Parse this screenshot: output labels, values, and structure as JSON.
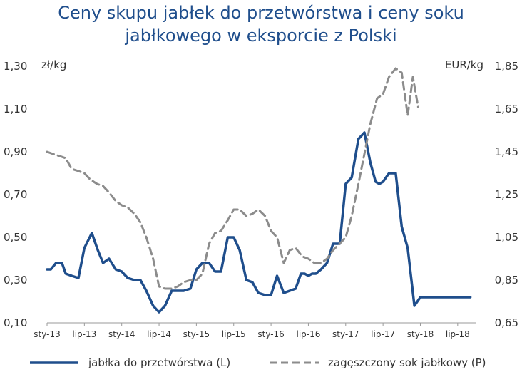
{
  "title_line1": "Ceny skupu jabłek do przetwórstwa i ceny soku",
  "title_line2": "jabłkowego w eksporcie z Polski",
  "chart_data": {
    "type": "line",
    "title": "Ceny skupu jabłek do przetwórstwa i ceny soku jabłkowego w eksporcie z Polski",
    "y_left_unit": "zł/kg",
    "y_right_unit": "EUR/kg",
    "y_left_ticks": [
      "1,30",
      "1,10",
      "0,90",
      "0,70",
      "0,50",
      "0,30",
      "0,10"
    ],
    "y_right_ticks": [
      "1,85",
      "1,65",
      "1,45",
      "1,25",
      "1,05",
      "0,85",
      "0,65"
    ],
    "y_left_lim": [
      0.1,
      1.3
    ],
    "y_right_lim": [
      0.65,
      1.85
    ],
    "x_tick_labels": [
      "sty-13",
      "lip-13",
      "sty-14",
      "lip-14",
      "sty-15",
      "lip-15",
      "sty-16",
      "lip-16",
      "sty-17",
      "lip-17",
      "sty-18",
      "lip-18"
    ],
    "x_range": [
      2013.0,
      2018.75
    ],
    "grid": false,
    "legend_position": "bottom",
    "series": [
      {
        "name": "jabłka do przetwórstwa (L)",
        "axis": "left",
        "color": "#1f4e8c",
        "style": "solid",
        "x": [
          2013.0,
          2013.05,
          2013.12,
          2013.2,
          2013.25,
          2013.33,
          2013.42,
          2013.5,
          2013.6,
          2013.68,
          2013.75,
          2013.83,
          2013.92,
          2014.0,
          2014.08,
          2014.17,
          2014.25,
          2014.33,
          2014.42,
          2014.5,
          2014.58,
          2014.67,
          2014.75,
          2014.83,
          2014.92,
          2015.0,
          2015.08,
          2015.17,
          2015.25,
          2015.33,
          2015.42,
          2015.5,
          2015.58,
          2015.67,
          2015.75,
          2015.83,
          2015.92,
          2016.0,
          2016.08,
          2016.17,
          2016.25,
          2016.33,
          2016.4,
          2016.45,
          2016.5,
          2016.55,
          2016.6,
          2016.67,
          2016.75,
          2016.83,
          2016.92,
          2017.0,
          2017.08,
          2017.17,
          2017.25,
          2017.33,
          2017.4,
          2017.45,
          2017.5,
          2017.58,
          2017.67,
          2017.75,
          2017.83,
          2017.92,
          2018.0,
          2018.08,
          2018.15,
          2018.25,
          2018.33,
          2018.42,
          2018.5,
          2018.58,
          2018.67
        ],
        "values": [
          0.35,
          0.35,
          0.38,
          0.38,
          0.33,
          0.32,
          0.31,
          0.45,
          0.52,
          0.44,
          0.38,
          0.4,
          0.35,
          0.34,
          0.31,
          0.3,
          0.3,
          0.25,
          0.18,
          0.15,
          0.18,
          0.25,
          0.25,
          0.25,
          0.26,
          0.35,
          0.38,
          0.38,
          0.34,
          0.34,
          0.5,
          0.5,
          0.44,
          0.3,
          0.29,
          0.24,
          0.23,
          0.23,
          0.32,
          0.24,
          0.25,
          0.26,
          0.33,
          0.33,
          0.32,
          0.33,
          0.33,
          0.35,
          0.38,
          0.47,
          0.47,
          0.75,
          0.78,
          0.96,
          0.99,
          0.85,
          0.76,
          0.75,
          0.76,
          0.8,
          0.8,
          0.55,
          0.45,
          0.18,
          0.22,
          0.22,
          0.22,
          0.22,
          0.22,
          0.22,
          0.22,
          0.22,
          0.22
        ]
      },
      {
        "name": "zagęszczony sok jabłkowy (P)",
        "axis": "right",
        "color": "#8c8c8c",
        "style": "dashed",
        "x": [
          2013.0,
          2013.08,
          2013.17,
          2013.25,
          2013.33,
          2013.42,
          2013.5,
          2013.58,
          2013.67,
          2013.75,
          2013.83,
          2013.92,
          2014.0,
          2014.08,
          2014.17,
          2014.25,
          2014.33,
          2014.42,
          2014.5,
          2014.58,
          2014.67,
          2014.75,
          2014.83,
          2014.92,
          2015.0,
          2015.08,
          2015.17,
          2015.25,
          2015.33,
          2015.42,
          2015.5,
          2015.58,
          2015.67,
          2015.75,
          2015.83,
          2015.92,
          2016.0,
          2016.08,
          2016.17,
          2016.25,
          2016.33,
          2016.42,
          2016.5,
          2016.58,
          2016.67,
          2016.75,
          2016.83,
          2016.92,
          2017.0,
          2017.08,
          2017.17,
          2017.25,
          2017.33,
          2017.42,
          2017.5,
          2017.58,
          2017.67,
          2017.75,
          2017.83,
          2017.9,
          2017.97
        ],
        "values": [
          1.45,
          1.44,
          1.43,
          1.42,
          1.37,
          1.36,
          1.35,
          1.32,
          1.3,
          1.29,
          1.26,
          1.22,
          1.2,
          1.19,
          1.16,
          1.12,
          1.05,
          0.95,
          0.82,
          0.81,
          0.81,
          0.82,
          0.84,
          0.85,
          0.85,
          0.88,
          1.02,
          1.07,
          1.08,
          1.13,
          1.18,
          1.18,
          1.15,
          1.16,
          1.18,
          1.15,
          1.08,
          1.05,
          0.93,
          0.99,
          1.0,
          0.96,
          0.95,
          0.93,
          0.93,
          0.95,
          0.99,
          1.02,
          1.05,
          1.15,
          1.3,
          1.44,
          1.58,
          1.7,
          1.72,
          1.8,
          1.84,
          1.82,
          1.62,
          1.8,
          1.66
        ]
      }
    ]
  }
}
